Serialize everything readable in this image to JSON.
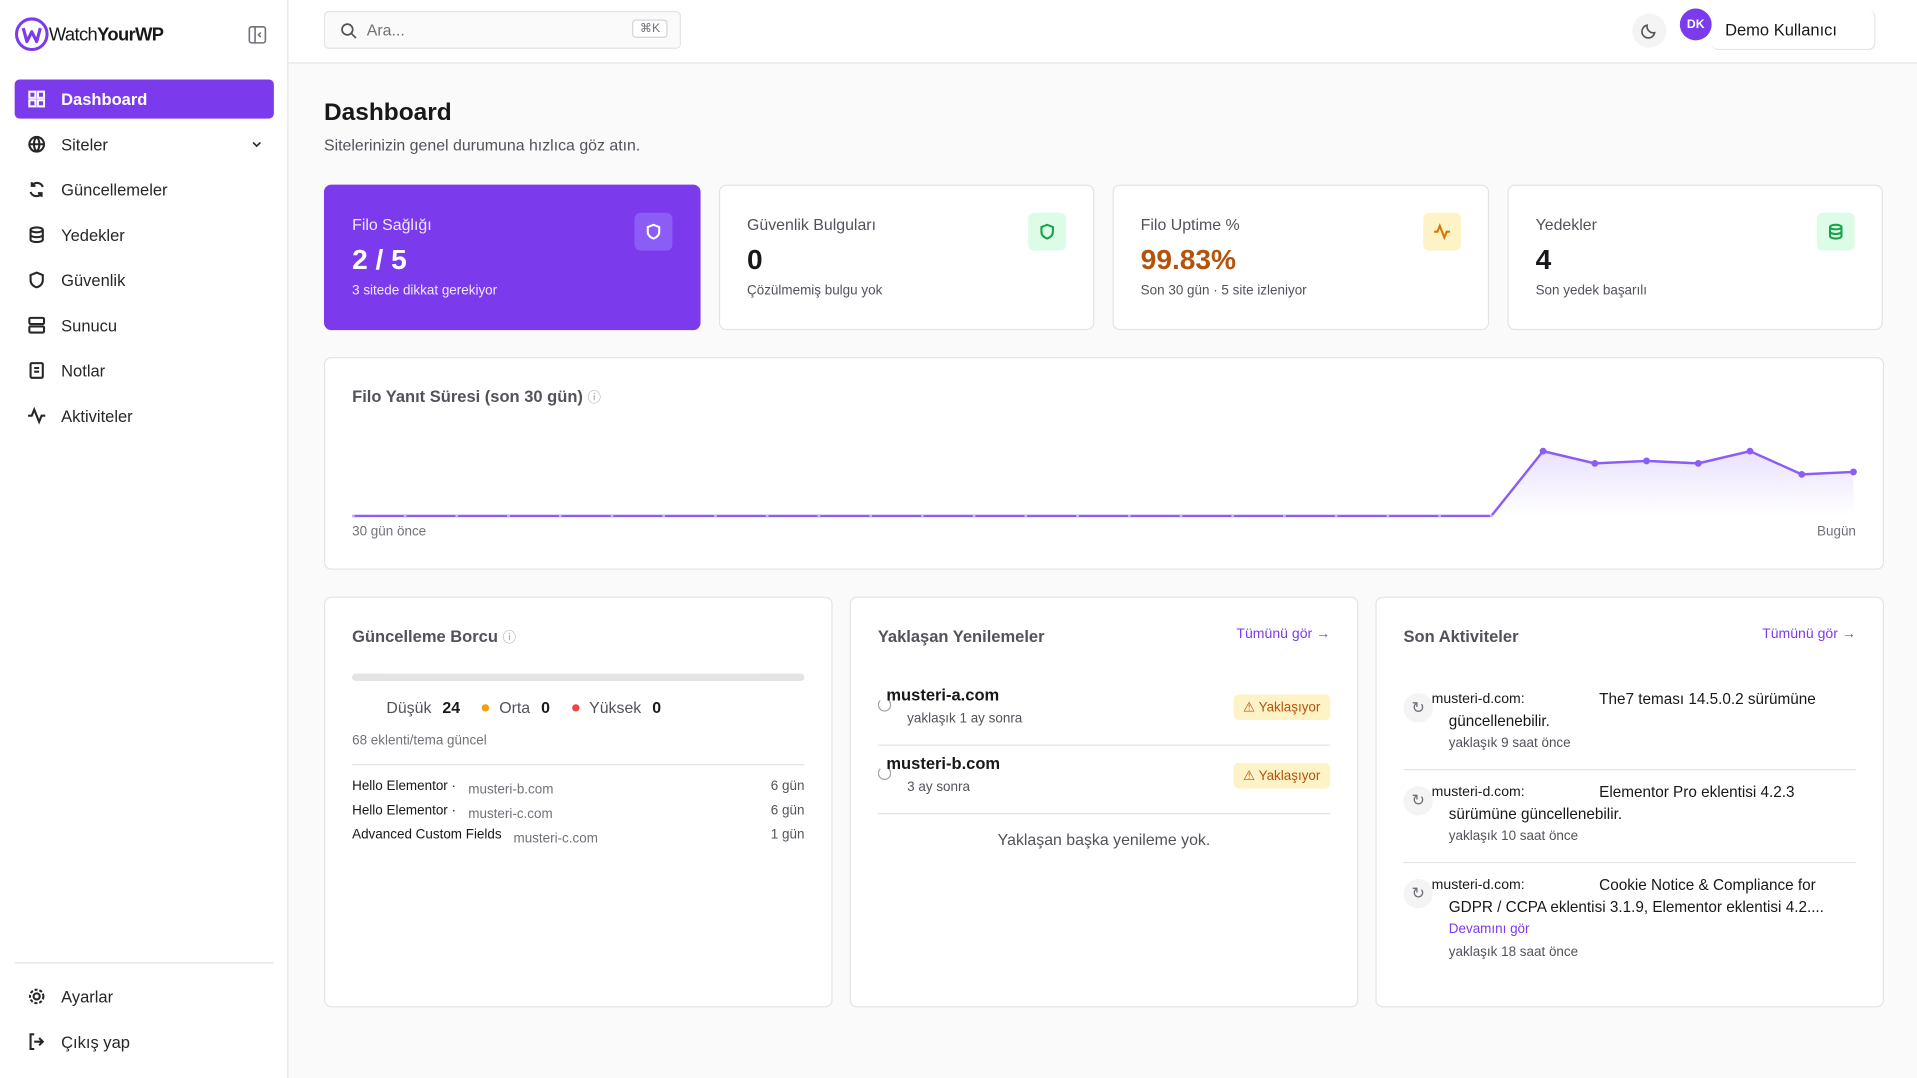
{
  "brand": {
    "prefix": "Watch",
    "suffix": "YourWP"
  },
  "sidebar": {
    "nav": [
      "Dashboard",
      "Siteler",
      "Güncellemeler",
      "Yedekler",
      "Güvenlik",
      "Sunucu",
      "Notlar",
      "Aktiviteler"
    ],
    "footer": [
      "Ayarlar",
      "Çıkış yap"
    ]
  },
  "topbar": {
    "search_placeholder": "Ara...",
    "shortcut": "⌘K",
    "user_initials": "DK",
    "user_name": "Demo Kullanıcı"
  },
  "header": {
    "title": "Dashboard",
    "subtitle": "Sitelerinizin genel durumuna hızlıca göz atın."
  },
  "stats": [
    {
      "label": "Filo Sağlığı",
      "value": "2 / 5",
      "note": "3 sitede dikkat gerekiyor"
    },
    {
      "label": "Güvenlik Bulguları",
      "value": "0",
      "note": "Çözülmemiş bulgu yok"
    },
    {
      "label": "Filo Uptime %",
      "value": "99.83%",
      "note": "Son 30 gün · 5 site izleniyor"
    },
    {
      "label": "Yedekler",
      "value": "4",
      "note": "Son yedek başarılı"
    }
  ],
  "response_chart": {
    "type": "line",
    "title": "Filo Yanıt Süresi (son 30 gün)",
    "start_label": "30 gün önce",
    "end_label": "Bugün",
    "color": "#8b5cf6",
    "values": [
      0,
      0,
      0,
      0,
      0,
      0,
      0,
      0,
      0,
      0,
      0,
      0,
      0,
      0,
      0,
      0,
      0,
      0,
      0,
      0,
      0,
      0,
      0,
      530,
      430,
      450,
      430,
      530,
      340,
      360
    ]
  },
  "update_debt": {
    "title": "Güncelleme Borcu",
    "levels": [
      {
        "name": "Düşük",
        "count": 24
      },
      {
        "name": "Orta",
        "count": 0
      },
      {
        "name": "Yüksek",
        "count": 0
      }
    ],
    "summary": "68 eklenti/tema güncel",
    "items": [
      {
        "name": "Hello Elementor ·",
        "site": "musteri-b.com",
        "age": "6 gün"
      },
      {
        "name": "Hello Elementor ·",
        "site": "musteri-c.com",
        "age": "6 gün"
      },
      {
        "name": "Advanced Custom Fields",
        "site": "musteri-c.com",
        "age": "1 gün"
      }
    ]
  },
  "renewals": {
    "title": "Yaklaşan Yenilemeler",
    "link": "Tümünü gör",
    "items": [
      {
        "domain": "musteri-a.com",
        "when": "yaklaşık 1 ay sonra",
        "status": "Yaklaşıyor"
      },
      {
        "domain": "musteri-b.com",
        "when": "3 ay sonra",
        "status": "Yaklaşıyor"
      }
    ],
    "empty": "Yaklaşan başka yenileme yok."
  },
  "activities": {
    "title": "Son Aktiviteler",
    "link": "Tümünü gör",
    "items": [
      {
        "site": "musteri-d.com:",
        "message": "The7 teması 14.5.0.2 sürümüne güncellenebilir.",
        "time": "yaklaşık 9 saat önce"
      },
      {
        "site": "musteri-d.com:",
        "message": "Elementor Pro eklentisi 4.2.3 sürümüne güncellenebilir.",
        "time": "yaklaşık 10 saat önce"
      },
      {
        "site": "musteri-d.com:",
        "message": "Cookie Notice & Compliance for GDPR / CCPA eklentisi 3.1.9, Elementor eklentisi 4.2....",
        "more": "Devamını gör",
        "time": "yaklaşık 18 saat önce"
      }
    ]
  }
}
